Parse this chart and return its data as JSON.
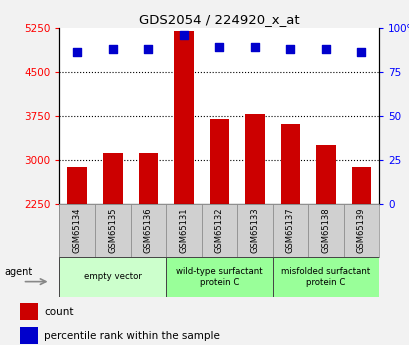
{
  "title": "GDS2054 / 224920_x_at",
  "samples": [
    "GSM65134",
    "GSM65135",
    "GSM65136",
    "GSM65131",
    "GSM65132",
    "GSM65133",
    "GSM65137",
    "GSM65138",
    "GSM65139"
  ],
  "counts": [
    2870,
    3120,
    3120,
    5200,
    3700,
    3780,
    3600,
    3240,
    2870
  ],
  "percentiles": [
    86,
    88,
    88,
    96,
    89,
    89,
    88,
    88,
    86
  ],
  "ylim_left": [
    2250,
    5250
  ],
  "ylim_right": [
    0,
    100
  ],
  "yticks_left": [
    2250,
    3000,
    3750,
    4500,
    5250
  ],
  "yticks_right": [
    0,
    25,
    50,
    75,
    100
  ],
  "groups": [
    {
      "label": "empty vector",
      "start": 0,
      "end": 3
    },
    {
      "label": "wild-type surfactant\nprotein C",
      "start": 3,
      "end": 6
    },
    {
      "label": "misfolded surfactant\nprotein C",
      "start": 6,
      "end": 9
    }
  ],
  "group_colors": [
    "#ccffcc",
    "#99ff99",
    "#99ff99"
  ],
  "bar_color": "#cc0000",
  "dot_color": "#0000cc",
  "plot_bg_color": "#ffffff",
  "fig_bg_color": "#f2f2f2",
  "sample_box_color": "#d0d0d0",
  "legend_count_color": "#cc0000",
  "legend_pct_color": "#0000cc"
}
